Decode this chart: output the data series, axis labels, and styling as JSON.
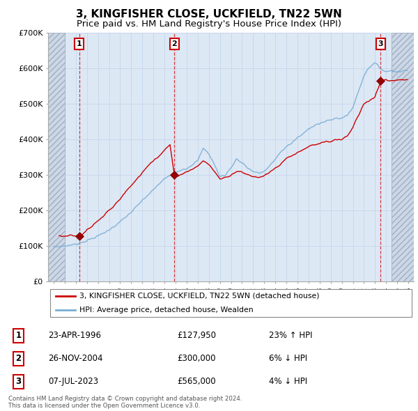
{
  "title": "3, KINGFISHER CLOSE, UCKFIELD, TN22 5WN",
  "subtitle": "Price paid vs. HM Land Registry's House Price Index (HPI)",
  "ylim": [
    0,
    700000
  ],
  "yticks": [
    0,
    100000,
    200000,
    300000,
    400000,
    500000,
    600000,
    700000
  ],
  "ytick_labels": [
    "£0",
    "£100K",
    "£200K",
    "£300K",
    "£400K",
    "£500K",
    "£600K",
    "£700K"
  ],
  "xlim_start": 1993.5,
  "xlim_end": 2026.5,
  "hatch_end": 1995.0,
  "hatch_start_right": 2024.5,
  "transactions": [
    {
      "year": 1996.31,
      "price": 127950,
      "label": "1"
    },
    {
      "year": 2004.9,
      "price": 300000,
      "label": "2"
    },
    {
      "year": 2023.51,
      "price": 565000,
      "label": "3"
    }
  ],
  "red_line_color": "#cc0000",
  "blue_line_color": "#7aadd4",
  "marker_color": "#990000",
  "background_color": "#dde8f5",
  "grid_color": "#c8d8ec",
  "legend_label_red": "3, KINGFISHER CLOSE, UCKFIELD, TN22 5WN (detached house)",
  "legend_label_blue": "HPI: Average price, detached house, Wealden",
  "table_data": [
    {
      "num": "1",
      "date": "23-APR-1996",
      "price": "£127,950",
      "hpi": "23% ↑ HPI"
    },
    {
      "num": "2",
      "date": "26-NOV-2004",
      "price": "£300,000",
      "hpi": "6% ↓ HPI"
    },
    {
      "num": "3",
      "date": "07-JUL-2023",
      "price": "£565,000",
      "hpi": "4% ↓ HPI"
    }
  ],
  "footer": "Contains HM Land Registry data © Crown copyright and database right 2024.\nThis data is licensed under the Open Government Licence v3.0.",
  "title_fontsize": 11,
  "subtitle_fontsize": 9.5,
  "tick_fontsize": 8
}
